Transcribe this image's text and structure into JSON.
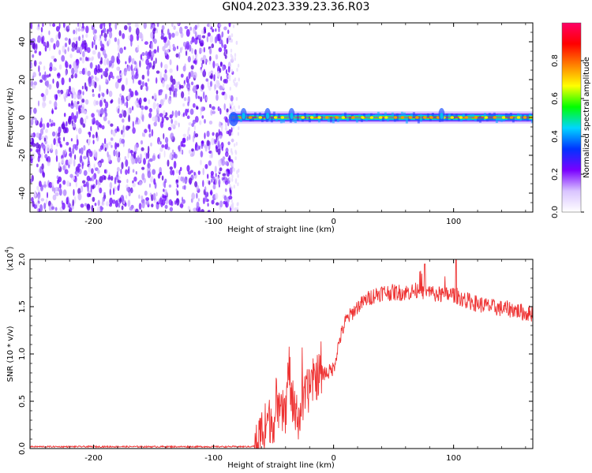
{
  "title": "GN04.2023.339.23.36.R03",
  "chart_data": [
    {
      "type": "heatmap",
      "xlabel": "Height of straight line (km)",
      "ylabel": "Frequency (Hz)",
      "xlim": [
        -253,
        166
      ],
      "ylim": [
        -50,
        50
      ],
      "x_ticks": [
        -200,
        -100,
        0,
        100
      ],
      "y_ticks": [
        -40,
        -20,
        0,
        20,
        40
      ],
      "x_tick_labels": [
        "-200",
        "-100",
        "0",
        "100"
      ],
      "y_tick_labels": [
        "-40",
        "-20",
        "0",
        "20",
        "40"
      ],
      "noise_region_x": [
        -253,
        -84
      ],
      "signal_line": {
        "frequency_hz": 0,
        "x_start": -86,
        "x_end": 166,
        "notes_x": [
          -75,
          -55,
          -35,
          90
        ]
      },
      "colorbar": {
        "label": "Normalized spectral amplitude",
        "range": [
          0,
          1
        ],
        "ticks": [
          0.0,
          0.2,
          0.4,
          0.6,
          0.8
        ],
        "tick_labels": [
          "0.0",
          "0.2",
          "0.4",
          "0.6",
          "0.8"
        ],
        "colors": [
          "#ffffff",
          "#d9c4ff",
          "#7a00ff",
          "#0033ff",
          "#00d5ff",
          "#00ff00",
          "#ffff00",
          "#ff8000",
          "#ff0000",
          "#ff0066"
        ]
      }
    },
    {
      "type": "line",
      "xlabel": "Height of straight line (km)",
      "ylabel": "SNR (10 * v/v)",
      "y_multiplier_label": "(x10",
      "y_multiplier_exp": "4",
      "y_multiplier_close": ")",
      "xlim": [
        -253,
        166
      ],
      "ylim": [
        0,
        2.0
      ],
      "x_ticks": [
        -200,
        -100,
        0,
        100
      ],
      "y_ticks": [
        0.0,
        0.5,
        1.0,
        1.5,
        2.0
      ],
      "x_tick_labels": [
        "-200",
        "-100",
        "0",
        "100"
      ],
      "y_tick_labels": [
        "0.0",
        "0.5",
        "1.0",
        "1.5",
        "2.0"
      ],
      "line_color": "#ee3333",
      "series": [
        {
          "x": [
            -253,
            -150,
            -70,
            -64,
            -60,
            -55,
            -50,
            -45,
            -40,
            -37,
            -35,
            -30,
            -25,
            -20,
            -15,
            -10,
            -5,
            0,
            5,
            10,
            20,
            30,
            40,
            50,
            60,
            70,
            80,
            90,
            100,
            110,
            120,
            130,
            140,
            150,
            160,
            166
          ],
          "values": [
            0.02,
            0.02,
            0.02,
            0.03,
            0.2,
            0.3,
            0.3,
            0.35,
            0.4,
            0.9,
            0.45,
            0.3,
            0.5,
            0.65,
            0.75,
            0.8,
            0.8,
            0.85,
            1.15,
            1.35,
            1.5,
            1.6,
            1.65,
            1.65,
            1.65,
            1.67,
            1.65,
            1.62,
            1.63,
            1.57,
            1.53,
            1.5,
            1.48,
            1.47,
            1.43,
            1.43
          ]
        }
      ]
    }
  ]
}
